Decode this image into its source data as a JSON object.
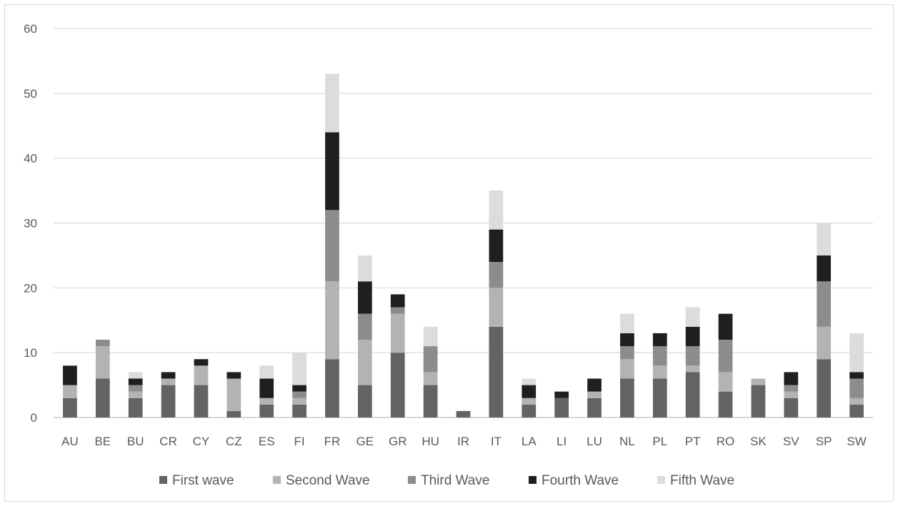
{
  "chart_data": {
    "type": "bar",
    "stacked": true,
    "title": "",
    "xlabel": "",
    "ylabel": "",
    "ylim": [
      0,
      60
    ],
    "yticks": [
      0,
      10,
      20,
      30,
      40,
      50,
      60
    ],
    "grid": true,
    "legend_position": "bottom",
    "categories": [
      "AU",
      "BE",
      "BU",
      "CR",
      "CY",
      "CZ",
      "ES",
      "FI",
      "FR",
      "GE",
      "GR",
      "HU",
      "IR",
      "IT",
      "LA",
      "LI",
      "LU",
      "NL",
      "PL",
      "PT",
      "RO",
      "SK",
      "SV",
      "SP",
      "SW"
    ],
    "series": [
      {
        "name": "First wave",
        "color": "#636363",
        "values": [
          3,
          6,
          3,
          5,
          5,
          1,
          2,
          2,
          9,
          5,
          10,
          5,
          1,
          14,
          2,
          3,
          3,
          6,
          6,
          7,
          4,
          5,
          3,
          9,
          2
        ]
      },
      {
        "name": "Second Wave",
        "color": "#b3b3b3",
        "values": [
          2,
          5,
          1,
          1,
          3,
          5,
          1,
          1,
          12,
          7,
          6,
          2,
          0,
          6,
          1,
          0,
          1,
          3,
          2,
          1,
          3,
          1,
          1,
          5,
          1
        ]
      },
      {
        "name": "Third Wave",
        "color": "#8c8c8c",
        "values": [
          0,
          1,
          1,
          0,
          0,
          0,
          0,
          1,
          11,
          4,
          1,
          4,
          0,
          4,
          0,
          0,
          0,
          2,
          3,
          3,
          5,
          0,
          1,
          7,
          3
        ]
      },
      {
        "name": "Fourth Wave",
        "color": "#1f1f1f",
        "values": [
          3,
          0,
          1,
          1,
          1,
          1,
          3,
          1,
          12,
          5,
          2,
          0,
          0,
          5,
          2,
          1,
          2,
          2,
          2,
          3,
          4,
          0,
          2,
          4,
          1
        ]
      },
      {
        "name": "Fifth Wave",
        "color": "#dcdcdc",
        "values": [
          0,
          0,
          1,
          0,
          0,
          0,
          2,
          5,
          9,
          4,
          0,
          3,
          0,
          6,
          1,
          0,
          0,
          3,
          0,
          3,
          0,
          0,
          0,
          5,
          6
        ]
      }
    ]
  }
}
